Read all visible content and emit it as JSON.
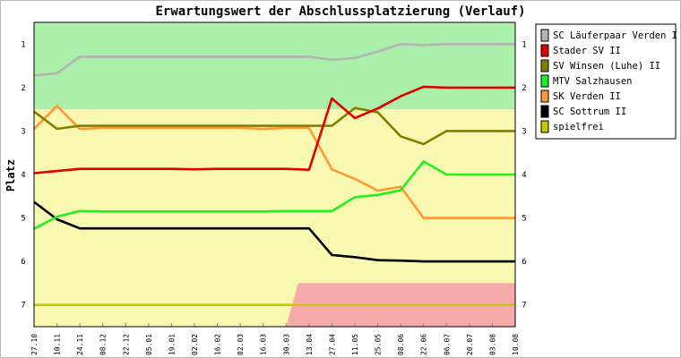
{
  "chart_data": {
    "type": "line",
    "title": "Erwartungswert der Abschlussplatzierung (Verlauf)",
    "xlabel": "",
    "ylabel": "Platz",
    "ylim": [
      7.5,
      0.5
    ],
    "y_ticks": [
      1,
      2,
      3,
      4,
      5,
      6,
      7
    ],
    "x_ticks": [
      "27.10",
      "10.11",
      "24.11",
      "08.12",
      "22.12",
      "05.01",
      "19.01",
      "02.02",
      "16.02",
      "02.03",
      "16.03",
      "30.03",
      "13.04",
      "27.04",
      "11.05",
      "25.05",
      "08.06",
      "22.06",
      "06.07",
      "20.07",
      "03.08",
      "10.08"
    ],
    "legend_position": "right",
    "zones": [
      {
        "from": 0.5,
        "to": 2.5,
        "color": "#aaf0aa"
      },
      {
        "from": 2.5,
        "to": 7.5,
        "color": "#f8f8b0"
      }
    ],
    "relegation_zone": {
      "from_rank": 6.5,
      "to_rank": 7.5,
      "start_date": "30.03",
      "full_date": "13.04",
      "color": "#f7aaaa"
    },
    "series": [
      {
        "name": "SC Läuferpaar Verden I",
        "color": "#b4b4b4",
        "values": [
          1.72,
          1.67,
          1.29,
          1.29,
          1.29,
          1.29,
          1.29,
          1.29,
          1.29,
          1.29,
          1.29,
          1.29,
          1.29,
          1.36,
          1.32,
          1.17,
          1.0,
          1.02,
          1.0,
          1.0,
          1.0,
          1.0
        ]
      },
      {
        "name": "Stader SV II",
        "color": "#e00000",
        "values": [
          3.97,
          3.92,
          3.87,
          3.87,
          3.87,
          3.87,
          3.87,
          3.88,
          3.87,
          3.87,
          3.87,
          3.87,
          3.89,
          2.25,
          2.7,
          2.48,
          2.2,
          1.98,
          2.0,
          2.0,
          2.0,
          2.0
        ]
      },
      {
        "name": "SV Winsen (Luhe) II",
        "color": "#808000",
        "values": [
          2.55,
          2.95,
          2.88,
          2.88,
          2.88,
          2.88,
          2.88,
          2.88,
          2.88,
          2.88,
          2.88,
          2.88,
          2.88,
          2.88,
          2.47,
          2.57,
          3.12,
          3.3,
          3.0,
          3.0,
          3.0,
          3.0
        ]
      },
      {
        "name": "MTV Salzhausen",
        "color": "#22ee22",
        "values": [
          5.25,
          4.97,
          4.84,
          4.85,
          4.85,
          4.85,
          4.85,
          4.85,
          4.85,
          4.85,
          4.85,
          4.84,
          4.84,
          4.84,
          4.52,
          4.47,
          4.36,
          3.7,
          4.0,
          4.0,
          4.0,
          4.0
        ]
      },
      {
        "name": "SK Verden II",
        "color": "#ff9933",
        "values": [
          2.95,
          2.42,
          2.95,
          2.93,
          2.93,
          2.93,
          2.93,
          2.93,
          2.93,
          2.93,
          2.95,
          2.93,
          2.93,
          3.88,
          4.1,
          4.37,
          4.28,
          5.0,
          5.0,
          5.0,
          5.0,
          5.0
        ]
      },
      {
        "name": "SC Sottrum II",
        "color": "#000000",
        "values": [
          4.63,
          5.03,
          5.24,
          5.24,
          5.24,
          5.24,
          5.24,
          5.24,
          5.24,
          5.24,
          5.24,
          5.24,
          5.24,
          5.85,
          5.9,
          5.97,
          5.98,
          6.0,
          6.0,
          6.0,
          6.0,
          6.0
        ]
      },
      {
        "name": "spielfrei",
        "color": "#c8c800",
        "values": [
          7,
          7,
          7,
          7,
          7,
          7,
          7,
          7,
          7,
          7,
          7,
          7,
          7,
          7,
          7,
          7,
          7,
          7,
          7,
          7,
          7,
          7
        ]
      }
    ]
  }
}
